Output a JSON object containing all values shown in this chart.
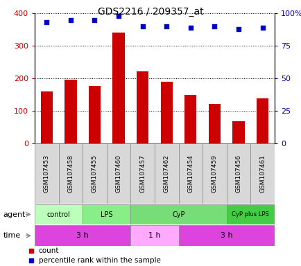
{
  "title": "GDS2216 / 209357_at",
  "samples": [
    "GSM107453",
    "GSM107458",
    "GSM107455",
    "GSM107460",
    "GSM107457",
    "GSM107462",
    "GSM107454",
    "GSM107459",
    "GSM107456",
    "GSM107461"
  ],
  "counts": [
    160,
    197,
    178,
    340,
    222,
    190,
    150,
    122,
    68,
    140
  ],
  "percentile_ranks": [
    93,
    95,
    95,
    98,
    90,
    90,
    89,
    90,
    88,
    89
  ],
  "bar_color": "#cc0000",
  "dot_color": "#0000cc",
  "ylim_left": [
    0,
    400
  ],
  "ylim_right": [
    0,
    100
  ],
  "yticks_left": [
    0,
    100,
    200,
    300,
    400
  ],
  "yticks_right": [
    0,
    25,
    50,
    75,
    100
  ],
  "ytick_labels_right": [
    "0",
    "25",
    "50",
    "75",
    "100%"
  ],
  "agent_groups": [
    {
      "label": "control",
      "start": 0,
      "end": 2,
      "color": "#bbffbb"
    },
    {
      "label": "LPS",
      "start": 2,
      "end": 4,
      "color": "#88ee88"
    },
    {
      "label": "CyP",
      "start": 4,
      "end": 8,
      "color": "#77dd77"
    },
    {
      "label": "CyP plus LPS",
      "start": 8,
      "end": 10,
      "color": "#44cc44"
    }
  ],
  "time_groups": [
    {
      "label": "3 h",
      "start": 0,
      "end": 4,
      "color": "#dd44dd"
    },
    {
      "label": "1 h",
      "start": 4,
      "end": 6,
      "color": "#ffaaff"
    },
    {
      "label": "3 h",
      "start": 6,
      "end": 10,
      "color": "#dd44dd"
    }
  ],
  "sample_bg": "#d8d8d8",
  "background_color": "#ffffff",
  "bar_width": 0.5
}
